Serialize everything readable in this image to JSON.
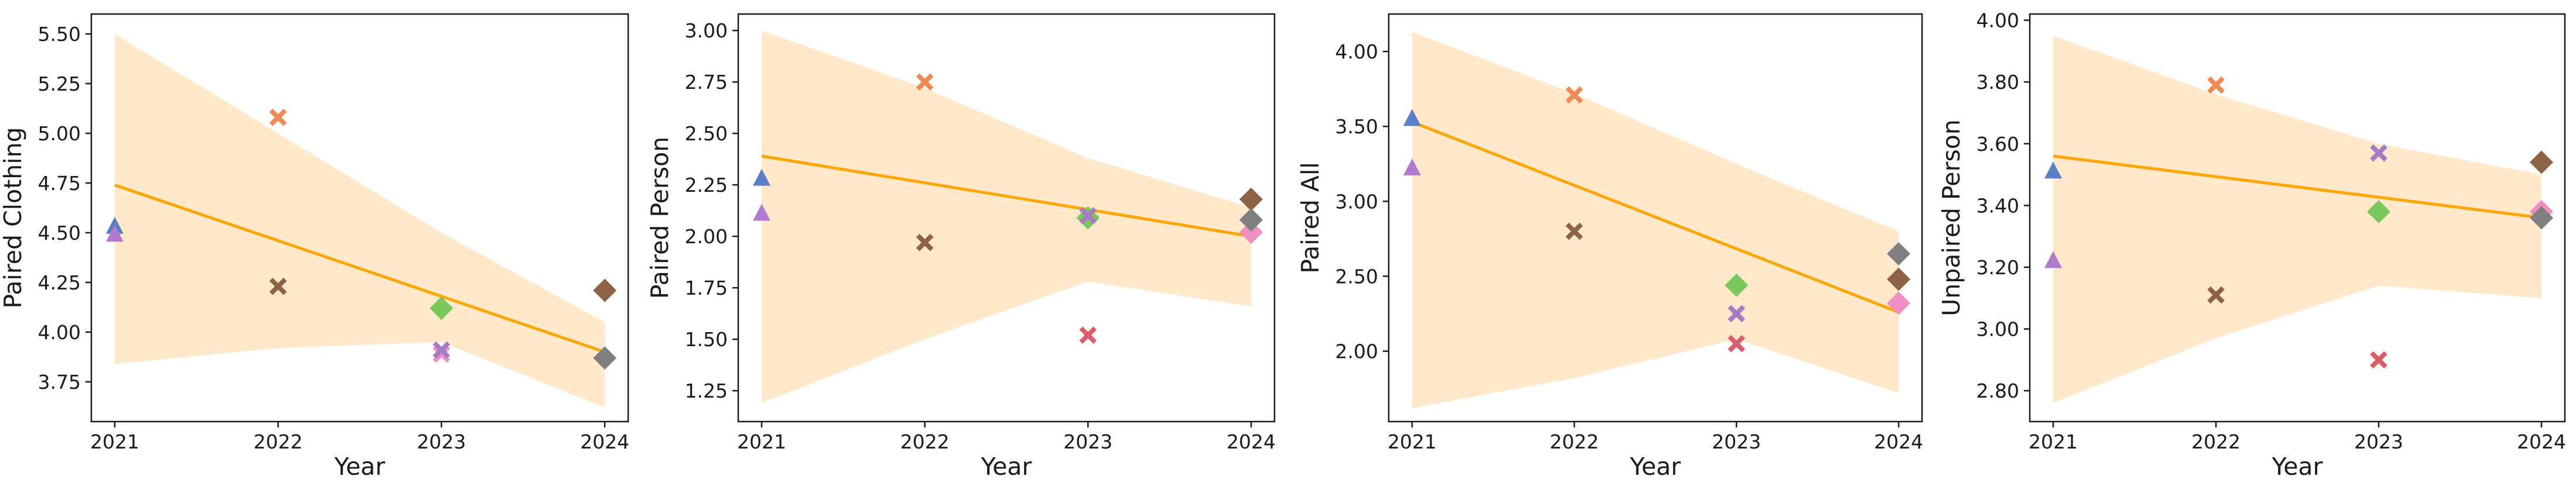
{
  "colors": {
    "trend": "#ffa500",
    "band": "#ffe2b8",
    "axis": "#1a1a1a"
  },
  "marker_colors": {
    "blue": "#5b7fc7",
    "purple": "#b07ad0",
    "orange": "#ef8a55",
    "brown": "#8e6244",
    "green": "#7ac85d",
    "lavender": "#a67bc4",
    "pink": "#f08fc4",
    "red": "#db5d6b",
    "gray": "#808080"
  },
  "chart_data": [
    {
      "type": "scatter",
      "xlabel": "Year",
      "ylabel": "Paired Clothing",
      "x_ticks": [
        "2021",
        "2022",
        "2023",
        "2024"
      ],
      "y_ticks": [
        "3.75",
        "4.00",
        "4.25",
        "4.50",
        "4.75",
        "5.00",
        "5.25",
        "5.50"
      ],
      "ylim": [
        3.55,
        5.6
      ],
      "trend": {
        "x": [
          2021,
          2024
        ],
        "y": [
          4.74,
          3.9
        ]
      },
      "ci_band": {
        "x": [
          2021,
          2022,
          2023,
          2024
        ],
        "upper": [
          5.5,
          5.0,
          4.5,
          4.05
        ],
        "lower": [
          3.84,
          3.92,
          3.95,
          3.62
        ]
      },
      "points": [
        {
          "year": 2021,
          "value": 4.53,
          "marker": "triangle",
          "color": "blue"
        },
        {
          "year": 2021,
          "value": 4.49,
          "marker": "triangle",
          "color": "purple"
        },
        {
          "year": 2022,
          "value": 5.08,
          "marker": "x",
          "color": "orange"
        },
        {
          "year": 2022,
          "value": 4.23,
          "marker": "x",
          "color": "brown"
        },
        {
          "year": 2023,
          "value": 4.12,
          "marker": "diamond",
          "color": "green"
        },
        {
          "year": 2023,
          "value": 3.89,
          "marker": "x",
          "color": "pink"
        },
        {
          "year": 2023,
          "value": 3.91,
          "marker": "x",
          "color": "lavender"
        },
        {
          "year": 2024,
          "value": 4.21,
          "marker": "diamond",
          "color": "brown"
        },
        {
          "year": 2024,
          "value": 3.87,
          "marker": "diamond",
          "color": "gray"
        }
      ]
    },
    {
      "type": "scatter",
      "xlabel": "Year",
      "ylabel": "Paired Person",
      "x_ticks": [
        "2021",
        "2022",
        "2023",
        "2024"
      ],
      "y_ticks": [
        "1.25",
        "1.50",
        "1.75",
        "2.00",
        "2.25",
        "2.50",
        "2.75",
        "3.00"
      ],
      "ylim": [
        1.1,
        3.08
      ],
      "trend": {
        "x": [
          2021,
          2024
        ],
        "y": [
          2.39,
          2.0
        ]
      },
      "ci_band": {
        "x": [
          2021,
          2022,
          2023,
          2024
        ],
        "upper": [
          3.0,
          2.72,
          2.38,
          2.14
        ],
        "lower": [
          1.19,
          1.5,
          1.78,
          1.66
        ]
      },
      "points": [
        {
          "year": 2021,
          "value": 2.28,
          "marker": "triangle",
          "color": "blue"
        },
        {
          "year": 2021,
          "value": 2.11,
          "marker": "triangle",
          "color": "purple"
        },
        {
          "year": 2022,
          "value": 2.75,
          "marker": "x",
          "color": "orange"
        },
        {
          "year": 2022,
          "value": 1.97,
          "marker": "x",
          "color": "brown"
        },
        {
          "year": 2023,
          "value": 2.09,
          "marker": "diamond",
          "color": "green"
        },
        {
          "year": 2023,
          "value": 2.1,
          "marker": "x",
          "color": "lavender"
        },
        {
          "year": 2023,
          "value": 1.52,
          "marker": "x",
          "color": "red"
        },
        {
          "year": 2024,
          "value": 2.18,
          "marker": "diamond",
          "color": "brown"
        },
        {
          "year": 2024,
          "value": 2.02,
          "marker": "diamond",
          "color": "pink"
        },
        {
          "year": 2024,
          "value": 2.08,
          "marker": "diamond",
          "color": "gray"
        }
      ]
    },
    {
      "type": "scatter",
      "xlabel": "Year",
      "ylabel": "Paired All",
      "x_ticks": [
        "2021",
        "2022",
        "2023",
        "2024"
      ],
      "y_ticks": [
        "2.00",
        "2.50",
        "3.00",
        "3.50",
        "4.00"
      ],
      "ylim": [
        1.53,
        4.25
      ],
      "trend": {
        "x": [
          2021,
          2024
        ],
        "y": [
          3.53,
          2.26
        ]
      },
      "ci_band": {
        "x": [
          2021,
          2022,
          2023,
          2024
        ],
        "upper": [
          4.13,
          3.72,
          3.25,
          2.8
        ],
        "lower": [
          1.62,
          1.82,
          2.08,
          1.72
        ]
      },
      "points": [
        {
          "year": 2021,
          "value": 3.55,
          "marker": "triangle",
          "color": "blue"
        },
        {
          "year": 2021,
          "value": 3.22,
          "marker": "triangle",
          "color": "purple"
        },
        {
          "year": 2022,
          "value": 3.71,
          "marker": "x",
          "color": "orange"
        },
        {
          "year": 2022,
          "value": 2.8,
          "marker": "x",
          "color": "brown"
        },
        {
          "year": 2023,
          "value": 2.44,
          "marker": "diamond",
          "color": "green"
        },
        {
          "year": 2023,
          "value": 2.25,
          "marker": "x",
          "color": "lavender"
        },
        {
          "year": 2023,
          "value": 2.05,
          "marker": "x",
          "color": "red"
        },
        {
          "year": 2024,
          "value": 2.65,
          "marker": "diamond",
          "color": "gray"
        },
        {
          "year": 2024,
          "value": 2.48,
          "marker": "diamond",
          "color": "brown"
        },
        {
          "year": 2024,
          "value": 2.32,
          "marker": "diamond",
          "color": "pink"
        }
      ]
    },
    {
      "type": "scatter",
      "xlabel": "Year",
      "ylabel": "Unpaired Person",
      "x_ticks": [
        "2021",
        "2022",
        "2023",
        "2024"
      ],
      "y_ticks": [
        "2.80",
        "3.00",
        "3.20",
        "3.40",
        "3.60",
        "3.80",
        "4.00"
      ],
      "ylim": [
        2.7,
        4.02
      ],
      "trend": {
        "x": [
          2021,
          2024
        ],
        "y": [
          3.56,
          3.36
        ]
      },
      "ci_band": {
        "x": [
          2021,
          2022,
          2023,
          2024
        ],
        "upper": [
          3.95,
          3.76,
          3.6,
          3.5
        ],
        "lower": [
          2.76,
          2.97,
          3.14,
          3.1
        ]
      },
      "points": [
        {
          "year": 2021,
          "value": 3.51,
          "marker": "triangle",
          "color": "blue"
        },
        {
          "year": 2021,
          "value": 3.22,
          "marker": "triangle",
          "color": "purple"
        },
        {
          "year": 2022,
          "value": 3.79,
          "marker": "x",
          "color": "orange"
        },
        {
          "year": 2022,
          "value": 3.11,
          "marker": "x",
          "color": "brown"
        },
        {
          "year": 2023,
          "value": 3.57,
          "marker": "x",
          "color": "lavender"
        },
        {
          "year": 2023,
          "value": 3.38,
          "marker": "diamond",
          "color": "green"
        },
        {
          "year": 2023,
          "value": 2.9,
          "marker": "x",
          "color": "red"
        },
        {
          "year": 2024,
          "value": 3.54,
          "marker": "diamond",
          "color": "brown"
        },
        {
          "year": 2024,
          "value": 3.38,
          "marker": "diamond",
          "color": "pink"
        },
        {
          "year": 2024,
          "value": 3.36,
          "marker": "diamond",
          "color": "gray"
        }
      ]
    }
  ]
}
